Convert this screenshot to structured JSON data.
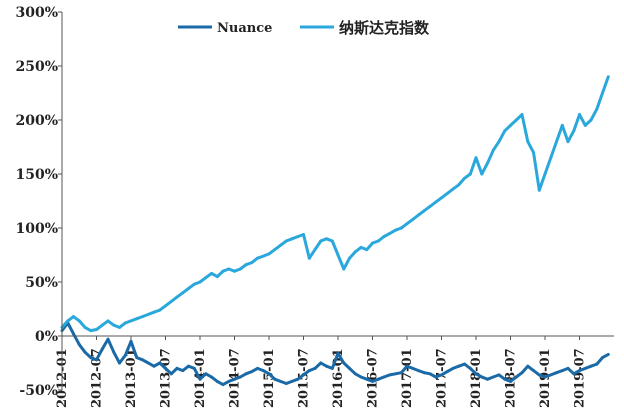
{
  "chart_data": {
    "type": "line",
    "ylim": [
      -50,
      300
    ],
    "y_ticks": [
      -50,
      0,
      50,
      100,
      150,
      200,
      250,
      300
    ],
    "y_tick_labels": [
      "-50%",
      "0%",
      "50%",
      "100%",
      "150%",
      "200%",
      "250%",
      "300%"
    ],
    "x_range": [
      "2012-01",
      "2019-12"
    ],
    "x_tick_labels": [
      "2012-01",
      "2012-07",
      "2013-01",
      "2013-07",
      "2014-01",
      "2014-07",
      "2015-01",
      "2015-07",
      "2016-01",
      "2016-07",
      "2017-01",
      "2017-07",
      "2018-01",
      "2018-07",
      "2019-01",
      "2019-07"
    ],
    "grid": false,
    "legend": "top-center",
    "series": [
      {
        "name": "Nuance",
        "color": "#1a6aa8",
        "points": [
          [
            "2012-01",
            5
          ],
          [
            "2012-02",
            12
          ],
          [
            "2012-03",
            2
          ],
          [
            "2012-04",
            -8
          ],
          [
            "2012-05",
            -15
          ],
          [
            "2012-06",
            -20
          ],
          [
            "2012-07",
            -22
          ],
          [
            "2012-08",
            -12
          ],
          [
            "2012-09",
            -3
          ],
          [
            "2012-10",
            -15
          ],
          [
            "2012-11",
            -25
          ],
          [
            "2012-12",
            -18
          ],
          [
            "2013-01",
            -5
          ],
          [
            "2013-02",
            -20
          ],
          [
            "2013-03",
            -22
          ],
          [
            "2013-04",
            -25
          ],
          [
            "2013-05",
            -28
          ],
          [
            "2013-06",
            -25
          ],
          [
            "2013-07",
            -30
          ],
          [
            "2013-08",
            -35
          ],
          [
            "2013-09",
            -30
          ],
          [
            "2013-10",
            -32
          ],
          [
            "2013-11",
            -28
          ],
          [
            "2013-12",
            -30
          ],
          [
            "2014-01",
            -40
          ],
          [
            "2014-02",
            -35
          ],
          [
            "2014-03",
            -38
          ],
          [
            "2014-04",
            -42
          ],
          [
            "2014-05",
            -45
          ],
          [
            "2014-06",
            -42
          ],
          [
            "2014-07",
            -40
          ],
          [
            "2014-08",
            -38
          ],
          [
            "2014-09",
            -35
          ],
          [
            "2014-10",
            -33
          ],
          [
            "2014-11",
            -30
          ],
          [
            "2014-12",
            -32
          ],
          [
            "2015-01",
            -35
          ],
          [
            "2015-02",
            -40
          ],
          [
            "2015-03",
            -42
          ],
          [
            "2015-04",
            -44
          ],
          [
            "2015-05",
            -42
          ],
          [
            "2015-06",
            -40
          ],
          [
            "2015-07",
            -36
          ],
          [
            "2015-08",
            -32
          ],
          [
            "2015-09",
            -30
          ],
          [
            "2015-10",
            -25
          ],
          [
            "2015-11",
            -28
          ],
          [
            "2015-12",
            -30
          ],
          [
            "2016-01",
            -16
          ],
          [
            "2016-02",
            -25
          ],
          [
            "2016-03",
            -30
          ],
          [
            "2016-04",
            -35
          ],
          [
            "2016-05",
            -38
          ],
          [
            "2016-06",
            -40
          ],
          [
            "2016-07",
            -42
          ],
          [
            "2016-08",
            -40
          ],
          [
            "2016-09",
            -38
          ],
          [
            "2016-10",
            -36
          ],
          [
            "2016-11",
            -35
          ],
          [
            "2016-12",
            -34
          ],
          [
            "2017-01",
            -28
          ],
          [
            "2017-02",
            -30
          ],
          [
            "2017-03",
            -32
          ],
          [
            "2017-04",
            -34
          ],
          [
            "2017-05",
            -35
          ],
          [
            "2017-06",
            -38
          ],
          [
            "2017-07",
            -36
          ],
          [
            "2017-08",
            -33
          ],
          [
            "2017-09",
            -30
          ],
          [
            "2017-10",
            -28
          ],
          [
            "2017-11",
            -26
          ],
          [
            "2017-12",
            -30
          ],
          [
            "2018-01",
            -35
          ],
          [
            "2018-02",
            -38
          ],
          [
            "2018-03",
            -40
          ],
          [
            "2018-04",
            -38
          ],
          [
            "2018-05",
            -36
          ],
          [
            "2018-06",
            -40
          ],
          [
            "2018-07",
            -42
          ],
          [
            "2018-08",
            -38
          ],
          [
            "2018-09",
            -34
          ],
          [
            "2018-10",
            -28
          ],
          [
            "2018-11",
            -32
          ],
          [
            "2018-12",
            -36
          ],
          [
            "2019-01",
            -38
          ],
          [
            "2019-02",
            -36
          ],
          [
            "2019-03",
            -34
          ],
          [
            "2019-04",
            -32
          ],
          [
            "2019-05",
            -30
          ],
          [
            "2019-06",
            -35
          ],
          [
            "2019-07",
            -32
          ],
          [
            "2019-08",
            -30
          ],
          [
            "2019-09",
            -28
          ],
          [
            "2019-10",
            -26
          ],
          [
            "2019-11",
            -20
          ],
          [
            "2019-12",
            -17
          ]
        ]
      },
      {
        "name": "纳斯达克指数",
        "color": "#2aa8dc",
        "points": [
          [
            "2012-01",
            8
          ],
          [
            "2012-02",
            14
          ],
          [
            "2012-03",
            18
          ],
          [
            "2012-04",
            14
          ],
          [
            "2012-05",
            8
          ],
          [
            "2012-06",
            5
          ],
          [
            "2012-07",
            6
          ],
          [
            "2012-08",
            10
          ],
          [
            "2012-09",
            14
          ],
          [
            "2012-10",
            10
          ],
          [
            "2012-11",
            8
          ],
          [
            "2012-12",
            12
          ],
          [
            "2013-01",
            14
          ],
          [
            "2013-02",
            16
          ],
          [
            "2013-03",
            18
          ],
          [
            "2013-04",
            20
          ],
          [
            "2013-05",
            22
          ],
          [
            "2013-06",
            24
          ],
          [
            "2013-07",
            28
          ],
          [
            "2013-08",
            32
          ],
          [
            "2013-09",
            36
          ],
          [
            "2013-10",
            40
          ],
          [
            "2013-11",
            44
          ],
          [
            "2013-12",
            48
          ],
          [
            "2014-01",
            50
          ],
          [
            "2014-02",
            54
          ],
          [
            "2014-03",
            58
          ],
          [
            "2014-04",
            55
          ],
          [
            "2014-05",
            60
          ],
          [
            "2014-06",
            62
          ],
          [
            "2014-07",
            60
          ],
          [
            "2014-08",
            62
          ],
          [
            "2014-09",
            66
          ],
          [
            "2014-10",
            68
          ],
          [
            "2014-11",
            72
          ],
          [
            "2014-12",
            74
          ],
          [
            "2015-01",
            76
          ],
          [
            "2015-02",
            80
          ],
          [
            "2015-03",
            84
          ],
          [
            "2015-04",
            88
          ],
          [
            "2015-05",
            90
          ],
          [
            "2015-06",
            92
          ],
          [
            "2015-07",
            94
          ],
          [
            "2015-08",
            72
          ],
          [
            "2015-09",
            80
          ],
          [
            "2015-10",
            88
          ],
          [
            "2015-11",
            90
          ],
          [
            "2015-12",
            88
          ],
          [
            "2016-01",
            75
          ],
          [
            "2016-02",
            62
          ],
          [
            "2016-03",
            72
          ],
          [
            "2016-04",
            78
          ],
          [
            "2016-05",
            82
          ],
          [
            "2016-06",
            80
          ],
          [
            "2016-07",
            86
          ],
          [
            "2016-08",
            88
          ],
          [
            "2016-09",
            92
          ],
          [
            "2016-10",
            95
          ],
          [
            "2016-11",
            98
          ],
          [
            "2016-12",
            100
          ],
          [
            "2017-01",
            104
          ],
          [
            "2017-02",
            108
          ],
          [
            "2017-03",
            112
          ],
          [
            "2017-04",
            116
          ],
          [
            "2017-05",
            120
          ],
          [
            "2017-06",
            124
          ],
          [
            "2017-07",
            128
          ],
          [
            "2017-08",
            132
          ],
          [
            "2017-09",
            136
          ],
          [
            "2017-10",
            140
          ],
          [
            "2017-11",
            146
          ],
          [
            "2017-12",
            150
          ],
          [
            "2018-01",
            165
          ],
          [
            "2018-02",
            150
          ],
          [
            "2018-03",
            160
          ],
          [
            "2018-04",
            172
          ],
          [
            "2018-05",
            180
          ],
          [
            "2018-06",
            190
          ],
          [
            "2018-07",
            195
          ],
          [
            "2018-08",
            200
          ],
          [
            "2018-09",
            205
          ],
          [
            "2018-10",
            180
          ],
          [
            "2018-11",
            170
          ],
          [
            "2018-12",
            135
          ],
          [
            "2019-01",
            150
          ],
          [
            "2019-02",
            165
          ],
          [
            "2019-03",
            180
          ],
          [
            "2019-04",
            195
          ],
          [
            "2019-05",
            180
          ],
          [
            "2019-06",
            190
          ],
          [
            "2019-07",
            205
          ],
          [
            "2019-08",
            195
          ],
          [
            "2019-09",
            200
          ],
          [
            "2019-10",
            210
          ],
          [
            "2019-11",
            225
          ],
          [
            "2019-12",
            240
          ]
        ]
      }
    ]
  }
}
